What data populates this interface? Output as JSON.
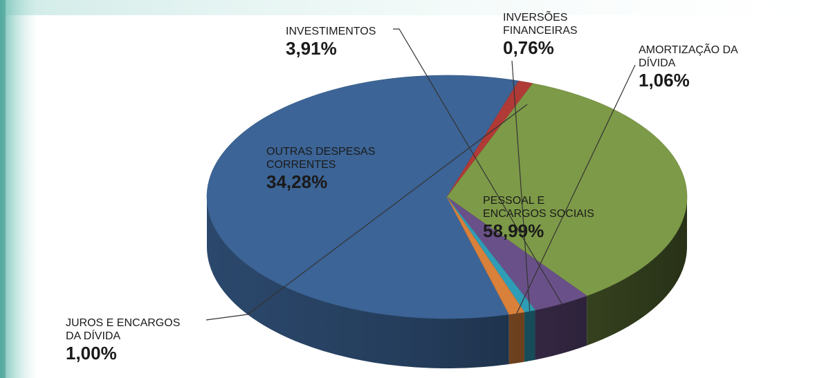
{
  "chart_data": {
    "type": "pie",
    "style": "3d",
    "slices": [
      {
        "name": "PESSOAL E\nENCARGOS SOCIAIS",
        "pct_label": "58,99%",
        "value": 58.99,
        "color": "#3c6496"
      },
      {
        "name": "JUROS E ENCARGOS\nDA DÍVIDA",
        "pct_label": "1,00%",
        "value": 1.0,
        "color": "#b03a36"
      },
      {
        "name": "OUTRAS DESPESAS\nCORRENTES",
        "pct_label": "34,28%",
        "value": 34.28,
        "color": "#7d9a48"
      },
      {
        "name": "INVESTIMENTOS",
        "pct_label": "3,91%",
        "value": 3.91,
        "color": "#6a5088"
      },
      {
        "name": "INVERSÕES\nFINANCEIRAS",
        "pct_label": "0,76%",
        "value": 0.76,
        "color": "#2f9db5"
      },
      {
        "name": "AMORTIZAÇÃO DA\nDÍVIDA",
        "pct_label": "1,06%",
        "value": 1.06,
        "color": "#d9803a"
      }
    ]
  }
}
